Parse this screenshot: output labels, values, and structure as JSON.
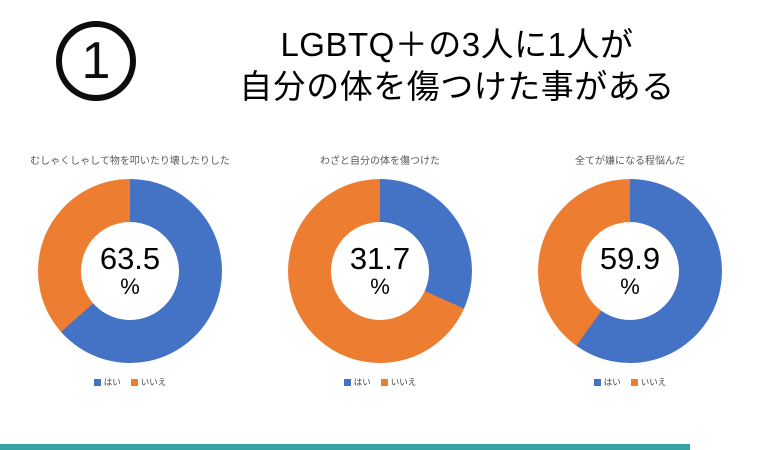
{
  "page": {
    "badge_number": "1",
    "title_line1": "LGBTQ＋の3人に1人が",
    "title_line2": "自分の体を傷つけた事がある"
  },
  "colors": {
    "yes": "#4472C4",
    "no": "#ED7D31",
    "footer_bar": "#35A3A3"
  },
  "chart_data": [
    {
      "type": "pie",
      "title": "むしゃくしゃして物を叩いたり壊したりした",
      "categories": [
        "はい",
        "いいえ"
      ],
      "values": [
        63.5,
        36.5
      ],
      "colors": [
        "#4472C4",
        "#ED7D31"
      ],
      "center_label": "63.5",
      "center_unit": "%",
      "legend": [
        "はい",
        "いいえ"
      ],
      "legend_position": "bottom",
      "donut": true,
      "start_angle_deg": 0
    },
    {
      "type": "pie",
      "title": "わざと自分の体を傷つけた",
      "categories": [
        "はい",
        "いいえ"
      ],
      "values": [
        31.7,
        68.3
      ],
      "colors": [
        "#4472C4",
        "#ED7D31"
      ],
      "center_label": "31.7",
      "center_unit": "%",
      "legend": [
        "はい",
        "いいえ"
      ],
      "legend_position": "bottom",
      "donut": true,
      "start_angle_deg": 0
    },
    {
      "type": "pie",
      "title": "全てが嫌になる程悩んだ",
      "categories": [
        "はい",
        "いいえ"
      ],
      "values": [
        59.9,
        40.1
      ],
      "colors": [
        "#4472C4",
        "#ED7D31"
      ],
      "center_label": "59.9",
      "center_unit": "%",
      "legend": [
        "はい",
        "いいえ"
      ],
      "legend_position": "bottom",
      "donut": true,
      "start_angle_deg": 0
    }
  ]
}
